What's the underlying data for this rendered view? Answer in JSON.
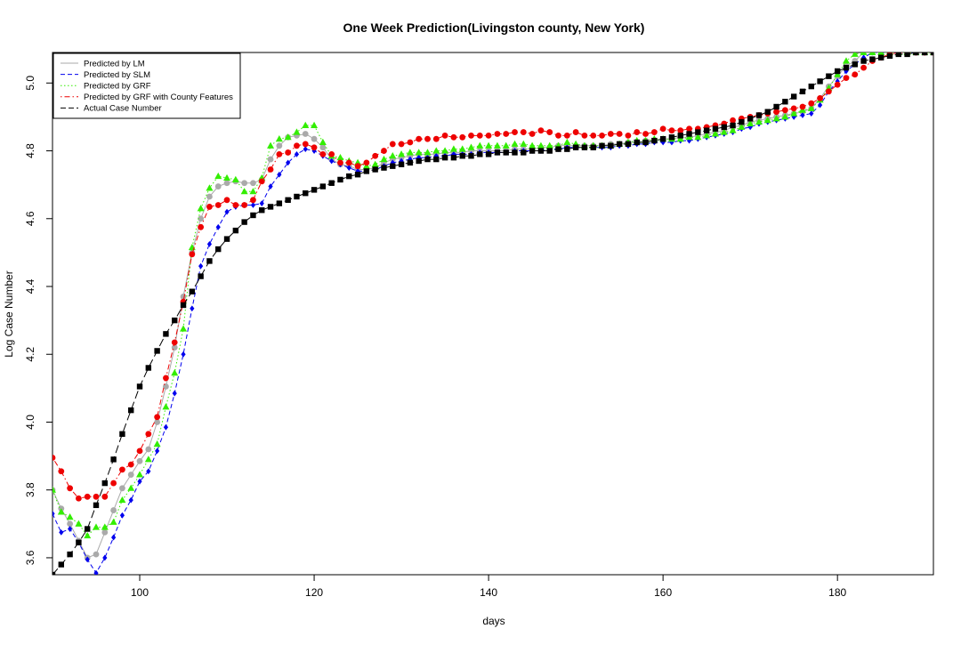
{
  "chart_data": {
    "type": "line",
    "title": "One Week Prediction(Livingston county, New York)",
    "xlabel": "days",
    "ylabel": "Log Case Number",
    "xlim": [
      90,
      191
    ],
    "ylim": [
      3.55,
      5.09
    ],
    "xticks": [
      100,
      120,
      140,
      160,
      180
    ],
    "yticks": [
      3.6,
      3.8,
      4.0,
      4.2,
      4.4,
      4.6,
      4.8,
      5.0
    ],
    "xtick_labels": [
      "100",
      "120",
      "140",
      "160",
      "180"
    ],
    "ytick_labels": [
      "3.6",
      "3.8",
      "4.0",
      "4.2",
      "4.4",
      "4.6",
      "4.8",
      "5.0"
    ],
    "legend_position": "top-left",
    "x": [
      90,
      91,
      92,
      93,
      94,
      95,
      96,
      97,
      98,
      99,
      100,
      101,
      102,
      103,
      104,
      105,
      106,
      107,
      108,
      109,
      110,
      111,
      112,
      113,
      114,
      115,
      116,
      117,
      118,
      119,
      120,
      121,
      122,
      123,
      124,
      125,
      126,
      127,
      128,
      129,
      130,
      131,
      132,
      133,
      134,
      135,
      136,
      137,
      138,
      139,
      140,
      141,
      142,
      143,
      144,
      145,
      146,
      147,
      148,
      149,
      150,
      151,
      152,
      153,
      154,
      155,
      156,
      157,
      158,
      159,
      160,
      161,
      162,
      163,
      164,
      165,
      166,
      167,
      168,
      169,
      170,
      171,
      172,
      173,
      174,
      175,
      176,
      177,
      178,
      179,
      180,
      181,
      182,
      183,
      184,
      185,
      186,
      187,
      188,
      189,
      190,
      191
    ],
    "series": [
      {
        "name": "Predicted by LM",
        "color": "#aaaaaa",
        "line": "solid",
        "marker": "circle",
        "values": [
          3.8,
          3.745,
          3.7,
          3.65,
          3.6,
          3.61,
          3.675,
          3.74,
          3.805,
          3.845,
          3.885,
          3.92,
          4.0,
          4.105,
          4.22,
          4.37,
          4.5,
          4.6,
          4.665,
          4.695,
          4.705,
          4.71,
          4.705,
          4.705,
          4.715,
          4.775,
          4.815,
          4.84,
          4.845,
          4.85,
          4.835,
          4.81,
          4.775,
          4.76,
          4.755,
          4.745,
          4.745,
          4.75,
          4.765,
          4.775,
          4.78,
          4.785,
          4.79,
          4.79,
          4.79,
          4.795,
          4.795,
          4.795,
          4.8,
          4.8,
          4.8,
          4.8,
          4.8,
          4.805,
          4.805,
          4.805,
          4.81,
          4.81,
          4.815,
          4.815,
          4.815,
          4.815,
          4.815,
          4.815,
          4.82,
          4.82,
          4.825,
          4.825,
          4.83,
          4.83,
          4.835,
          4.835,
          4.84,
          4.84,
          4.845,
          4.85,
          4.855,
          4.86,
          4.87,
          4.875,
          4.885,
          4.89,
          4.895,
          4.9,
          4.905,
          4.91,
          4.915,
          4.925,
          4.955,
          4.99,
          5.02,
          5.05,
          5.065,
          5.09,
          5.09,
          5.09,
          5.09,
          5.09,
          5.09,
          5.09,
          5.09,
          5.09
        ]
      },
      {
        "name": "Predicted by SLM",
        "color": "#0000ee",
        "line": "dashed",
        "marker": "diamond",
        "values": [
          3.73,
          3.675,
          3.685,
          3.645,
          3.595,
          3.555,
          3.6,
          3.66,
          3.725,
          3.77,
          3.825,
          3.855,
          3.915,
          3.985,
          4.085,
          4.2,
          4.335,
          4.46,
          4.525,
          4.575,
          4.62,
          4.635,
          4.64,
          4.64,
          4.645,
          4.695,
          4.73,
          4.765,
          4.79,
          4.805,
          4.8,
          4.785,
          4.77,
          4.76,
          4.75,
          4.74,
          4.74,
          4.745,
          4.755,
          4.765,
          4.77,
          4.775,
          4.78,
          4.78,
          4.785,
          4.785,
          4.79,
          4.79,
          4.79,
          4.795,
          4.795,
          4.795,
          4.795,
          4.8,
          4.8,
          4.8,
          4.8,
          4.805,
          4.805,
          4.81,
          4.81,
          4.81,
          4.81,
          4.81,
          4.81,
          4.815,
          4.815,
          4.82,
          4.82,
          4.825,
          4.825,
          4.825,
          4.83,
          4.83,
          4.835,
          4.84,
          4.845,
          4.85,
          4.855,
          4.865,
          4.87,
          4.88,
          4.885,
          4.89,
          4.895,
          4.9,
          4.905,
          4.91,
          4.935,
          4.975,
          5.005,
          5.035,
          5.055,
          5.075,
          5.09,
          5.09,
          5.09,
          5.09,
          5.09,
          5.09,
          5.09,
          5.09
        ]
      },
      {
        "name": "Predicted by GRF",
        "color": "#33ee00",
        "line": "dotted",
        "marker": "triangle",
        "values": [
          3.8,
          3.735,
          3.72,
          3.7,
          3.665,
          3.69,
          3.69,
          3.705,
          3.77,
          3.805,
          3.845,
          3.89,
          3.935,
          4.045,
          4.145,
          4.275,
          4.515,
          4.63,
          4.69,
          4.725,
          4.72,
          4.715,
          4.68,
          4.68,
          4.72,
          4.815,
          4.835,
          4.84,
          4.855,
          4.875,
          4.875,
          4.825,
          4.785,
          4.78,
          4.77,
          4.765,
          4.755,
          4.76,
          4.775,
          4.785,
          4.79,
          4.795,
          4.795,
          4.795,
          4.8,
          4.8,
          4.805,
          4.805,
          4.81,
          4.815,
          4.815,
          4.815,
          4.815,
          4.82,
          4.82,
          4.815,
          4.815,
          4.815,
          4.815,
          4.825,
          4.82,
          4.815,
          4.815,
          4.815,
          4.815,
          4.82,
          4.825,
          4.83,
          4.83,
          4.835,
          4.835,
          4.835,
          4.835,
          4.84,
          4.84,
          4.845,
          4.85,
          4.855,
          4.86,
          4.87,
          4.88,
          4.885,
          4.89,
          4.895,
          4.9,
          4.91,
          4.92,
          4.925,
          4.95,
          4.985,
          5.025,
          5.065,
          5.085,
          5.09,
          5.09,
          5.09,
          5.09,
          5.09,
          5.09,
          5.09,
          5.09,
          5.09
        ]
      },
      {
        "name": "Predicted by GRF with County Features",
        "color": "#ee0000",
        "line": "dotdash",
        "marker": "circle",
        "values": [
          3.895,
          3.855,
          3.805,
          3.775,
          3.78,
          3.78,
          3.78,
          3.82,
          3.86,
          3.875,
          3.915,
          3.965,
          4.015,
          4.13,
          4.235,
          4.355,
          4.495,
          4.575,
          4.635,
          4.64,
          4.655,
          4.64,
          4.64,
          4.655,
          4.71,
          4.745,
          4.79,
          4.795,
          4.815,
          4.82,
          4.81,
          4.79,
          4.79,
          4.765,
          4.765,
          4.755,
          4.765,
          4.785,
          4.8,
          4.82,
          4.82,
          4.825,
          4.835,
          4.835,
          4.835,
          4.845,
          4.84,
          4.84,
          4.845,
          4.845,
          4.845,
          4.85,
          4.85,
          4.855,
          4.855,
          4.85,
          4.86,
          4.855,
          4.845,
          4.845,
          4.855,
          4.845,
          4.845,
          4.845,
          4.85,
          4.85,
          4.845,
          4.855,
          4.85,
          4.855,
          4.865,
          4.86,
          4.86,
          4.865,
          4.865,
          4.87,
          4.875,
          4.88,
          4.89,
          4.895,
          4.9,
          4.905,
          4.91,
          4.915,
          4.92,
          4.925,
          4.93,
          4.94,
          4.955,
          4.975,
          4.995,
          5.015,
          5.025,
          5.045,
          5.065,
          5.075,
          5.085,
          5.09,
          5.09,
          5.09,
          5.09,
          5.09
        ]
      },
      {
        "name": "Actual Case Number",
        "color": "#000000",
        "line": "longdash",
        "marker": "square",
        "values": [
          3.55,
          3.58,
          3.61,
          3.645,
          3.685,
          3.755,
          3.82,
          3.89,
          3.965,
          4.035,
          4.105,
          4.16,
          4.21,
          4.26,
          4.3,
          4.345,
          4.385,
          4.43,
          4.475,
          4.51,
          4.54,
          4.565,
          4.59,
          4.61,
          4.625,
          4.635,
          4.645,
          4.655,
          4.665,
          4.675,
          4.685,
          4.695,
          4.705,
          4.715,
          4.725,
          4.73,
          4.74,
          4.745,
          4.75,
          4.755,
          4.76,
          4.765,
          4.77,
          4.775,
          4.775,
          4.78,
          4.78,
          4.785,
          4.785,
          4.79,
          4.79,
          4.795,
          4.795,
          4.795,
          4.795,
          4.8,
          4.8,
          4.8,
          4.805,
          4.805,
          4.81,
          4.81,
          4.81,
          4.815,
          4.815,
          4.82,
          4.82,
          4.825,
          4.825,
          4.83,
          4.835,
          4.84,
          4.845,
          4.85,
          4.855,
          4.86,
          4.865,
          4.87,
          4.875,
          4.885,
          4.895,
          4.905,
          4.915,
          4.93,
          4.945,
          4.96,
          4.975,
          4.99,
          5.005,
          5.02,
          5.035,
          5.045,
          5.055,
          5.065,
          5.07,
          5.075,
          5.08,
          5.085,
          5.085,
          5.09,
          5.09,
          5.09
        ]
      }
    ]
  }
}
